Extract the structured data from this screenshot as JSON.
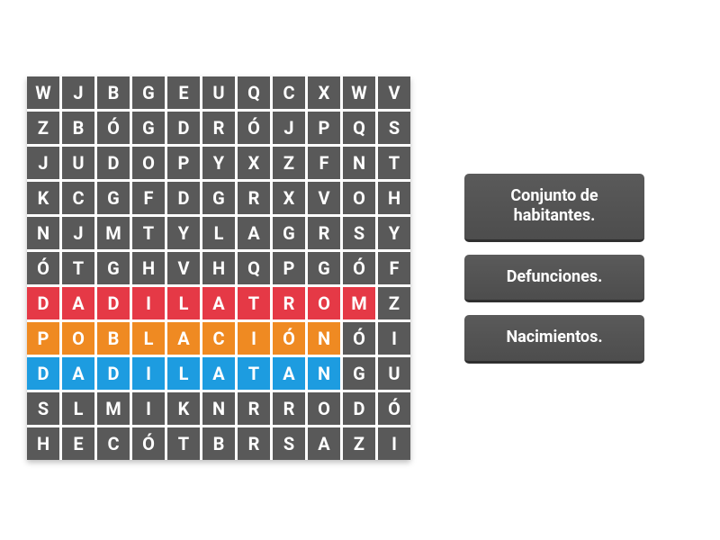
{
  "grid": {
    "cols": 11,
    "rows": 11,
    "cell_bg_default": "#595959",
    "cell_text_color": "#ffffff",
    "cell_fontsize": 20,
    "gap": 3,
    "cell_size": 36,
    "shadow_color": "rgba(0,0,0,0.25)",
    "letters": [
      [
        "W",
        "J",
        "B",
        "G",
        "E",
        "U",
        "Q",
        "C",
        "X",
        "W",
        "V"
      ],
      [
        "Z",
        "B",
        "Ó",
        "G",
        "D",
        "R",
        "Ó",
        "J",
        "P",
        "Q",
        "S"
      ],
      [
        "J",
        "U",
        "D",
        "O",
        "P",
        "Y",
        "X",
        "Z",
        "F",
        "N",
        "T"
      ],
      [
        "K",
        "C",
        "G",
        "F",
        "D",
        "G",
        "R",
        "X",
        "V",
        "O",
        "H"
      ],
      [
        "N",
        "J",
        "M",
        "T",
        "Y",
        "L",
        "A",
        "G",
        "R",
        "S",
        "Y"
      ],
      [
        "Ó",
        "T",
        "G",
        "H",
        "V",
        "H",
        "Q",
        "P",
        "G",
        "Ó",
        "F"
      ],
      [
        "D",
        "A",
        "D",
        "I",
        "L",
        "A",
        "T",
        "R",
        "O",
        "M",
        "Z"
      ],
      [
        "P",
        "O",
        "B",
        "L",
        "A",
        "C",
        "I",
        "Ó",
        "N",
        "Ó",
        "I"
      ],
      [
        "D",
        "A",
        "D",
        "I",
        "L",
        "A",
        "T",
        "A",
        "N",
        "G",
        "U"
      ],
      [
        "S",
        "L",
        "M",
        "I",
        "K",
        "N",
        "R",
        "R",
        "O",
        "D",
        "Ó"
      ],
      [
        "H",
        "E",
        "C",
        "Ó",
        "T",
        "B",
        "R",
        "S",
        "A",
        "Z",
        "I"
      ]
    ],
    "highlights": [
      {
        "row": 6,
        "col_start": 0,
        "col_end": 9,
        "color": "#e53946"
      },
      {
        "row": 7,
        "col_start": 0,
        "col_end": 8,
        "color": "#ef8a22"
      },
      {
        "row": 8,
        "col_start": 0,
        "col_end": 8,
        "color": "#1d9ce0"
      }
    ]
  },
  "clues": {
    "bg": "#545454",
    "border_bottom": "#2f2f2f",
    "text_color": "#ffffff",
    "fontsize": 18,
    "items": [
      {
        "label": "Conjunto de habitantes."
      },
      {
        "label": "Defunciones."
      },
      {
        "label": "Nacimientos."
      }
    ]
  },
  "page": {
    "background_color": "#ffffff"
  }
}
